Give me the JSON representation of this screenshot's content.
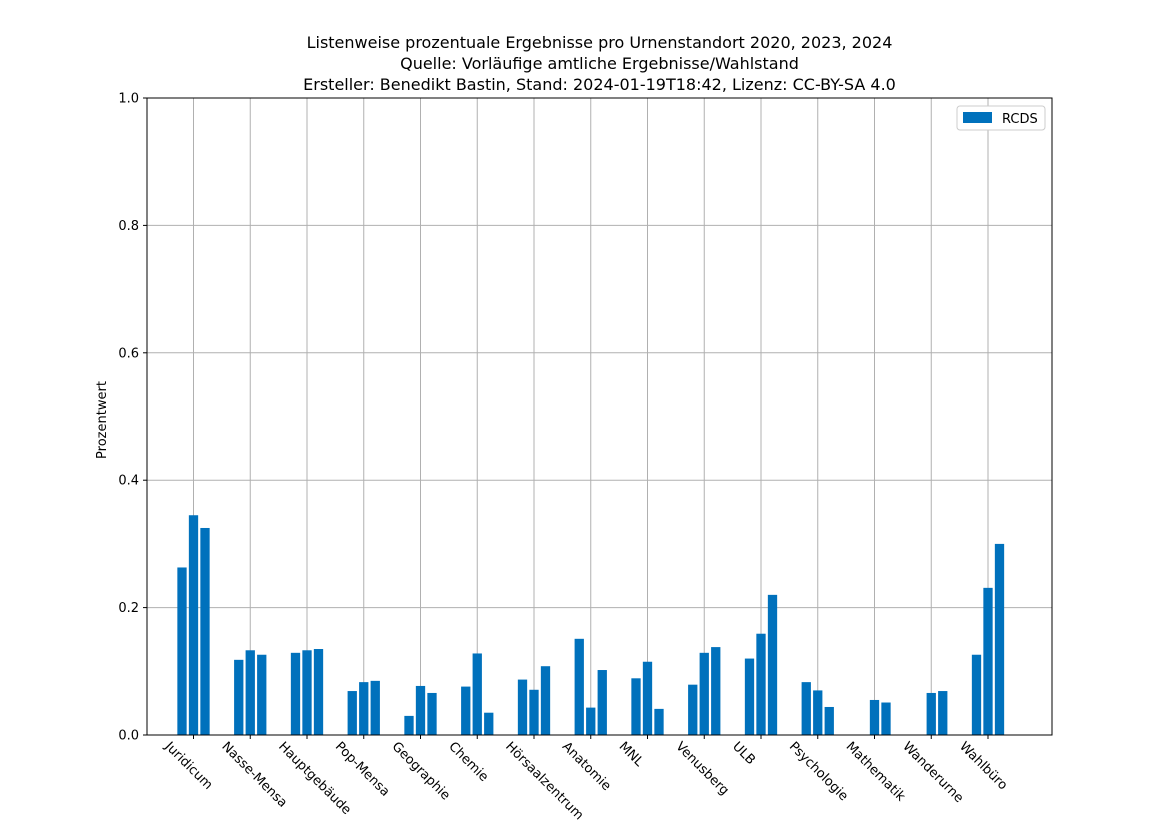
{
  "chart_data": {
    "type": "bar",
    "title_lines": [
      "Listenweise prozentuale Ergebnisse pro Urnenstandort 2020, 2023, 2024",
      "Quelle: Vorläufige amtliche Ergebnisse/Wahlstand",
      "Ersteller: Benedikt Bastin, Stand: 2024-01-19T18:42, Lizenz: CC-BY-SA 4.0"
    ],
    "xlabel": "",
    "ylabel": "Prozentwert",
    "ylim": [
      0,
      1.0
    ],
    "yticks": [
      "0.0",
      "0.2",
      "0.4",
      "0.6",
      "0.8",
      "1.0"
    ],
    "grid": true,
    "legend": {
      "position": "top-right",
      "entries": [
        "RCDS"
      ]
    },
    "categories": [
      "Juridicum",
      "Nasse-Mensa",
      "Hauptgebäude",
      "Pop-Mensa",
      "Geographie",
      "Chemie",
      "Hörsaalzentrum",
      "Anatomie",
      "MNL",
      "Venusberg",
      "ULB",
      "Psychologie",
      "Mathematik",
      "Wanderurne",
      "Wahlbüro"
    ],
    "series": [
      {
        "name": "RCDS",
        "color": "#0071bc",
        "values": [
          [
            0.263,
            0.345,
            0.325
          ],
          [
            0.118,
            0.133,
            0.126
          ],
          [
            0.129,
            0.133,
            0.135
          ],
          [
            0.069,
            0.083,
            0.085
          ],
          [
            0.03,
            0.077,
            0.066
          ],
          [
            0.076,
            0.128,
            0.035
          ],
          [
            0.087,
            0.071,
            0.108
          ],
          [
            0.151,
            0.043,
            0.102
          ],
          [
            0.089,
            0.115,
            0.041
          ],
          [
            0.079,
            0.129,
            0.138
          ],
          [
            0.12,
            0.159,
            0.22
          ],
          [
            0.083,
            0.07,
            0.044
          ],
          [
            null,
            0.055,
            0.051
          ],
          [
            null,
            0.066,
            0.069
          ],
          [
            0.126,
            0.231,
            0.3
          ]
        ]
      }
    ]
  }
}
